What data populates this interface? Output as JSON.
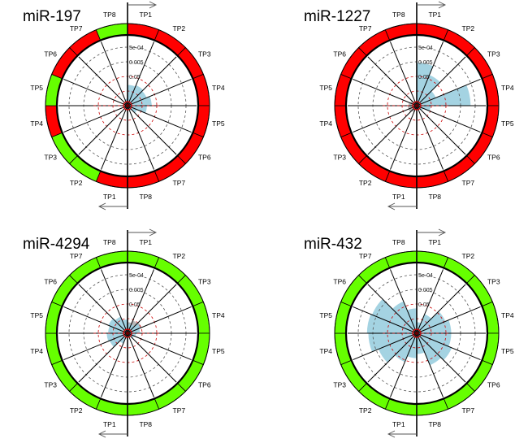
{
  "chart_data": [
    {
      "type": "radial",
      "title": "miR-197",
      "ring_labels_right": [
        "TP1",
        "TP2",
        "TP3",
        "TP4",
        "TP5",
        "TP6",
        "TP7",
        "TP8"
      ],
      "ring_labels_left": [
        "TP1",
        "TP2",
        "TP3",
        "TP4",
        "TP5",
        "TP6",
        "TP7",
        "TP8"
      ],
      "scale_labels": [
        "5e-04",
        "0.005",
        "0.05"
      ],
      "ring_status": [
        "red",
        "red",
        "red",
        "red",
        "red",
        "red",
        "red",
        "red",
        "red",
        "green",
        "green",
        "red",
        "green",
        "red",
        "red",
        "green"
      ],
      "blue_values": [
        0.3,
        0.32,
        0.3,
        0.35,
        0.28,
        0.15,
        0.08,
        0.06,
        0.06,
        0.05,
        0.05,
        0.05,
        0.05,
        0.05,
        0.05,
        0.1
      ],
      "grey_values": [
        0,
        0,
        0,
        0,
        0,
        0,
        0,
        0,
        0,
        0,
        0,
        0,
        0,
        0,
        0,
        0
      ]
    },
    {
      "type": "radial",
      "title": "miR-1227",
      "ring_labels_right": [
        "TP1",
        "TP2",
        "TP3",
        "TP4",
        "TP5",
        "TP6",
        "TP7",
        "TP8"
      ],
      "ring_labels_left": [
        "TP1",
        "TP2",
        "TP3",
        "TP4",
        "TP5",
        "TP6",
        "TP7",
        "TP8"
      ],
      "scale_labels": [
        "5e-04",
        "0.005",
        "0.05"
      ],
      "ring_status": [
        "red",
        "red",
        "red",
        "red",
        "red",
        "red",
        "red",
        "red",
        "red",
        "red",
        "red",
        "red",
        "red",
        "red",
        "red",
        "red"
      ],
      "blue_values": [
        0.62,
        0.48,
        0.3,
        0.78,
        0.2,
        0.1,
        0.06,
        0.05,
        0.05,
        0.05,
        0.05,
        0.05,
        0.05,
        0.05,
        0.05,
        0.05
      ],
      "grey_values": [
        0,
        0,
        0,
        0,
        0,
        0,
        0,
        0,
        0.06,
        0.1,
        0.13,
        0.13,
        0.12,
        0.1,
        0.06,
        0.05
      ]
    },
    {
      "type": "radial",
      "title": "miR-4294",
      "ring_labels_right": [
        "TP1",
        "TP2",
        "TP3",
        "TP4",
        "TP5",
        "TP6",
        "TP7",
        "TP8"
      ],
      "ring_labels_left": [
        "TP1",
        "TP2",
        "TP3",
        "TP4",
        "TP5",
        "TP6",
        "TP7",
        "TP8"
      ],
      "scale_labels": [
        "5e-04",
        "0.005",
        "0.05"
      ],
      "ring_status": [
        "green",
        "green",
        "green",
        "green",
        "green",
        "green",
        "green",
        "green",
        "green",
        "green",
        "green",
        "green",
        "green",
        "green",
        "green",
        "green"
      ],
      "blue_values": [
        0.14,
        0.14,
        0.2,
        0.18,
        0.12,
        0.1,
        0.06,
        0.05,
        0.08,
        0.16,
        0.28,
        0.3,
        0.28,
        0.3,
        0.26,
        0.2
      ],
      "grey_values": [
        0.16,
        0.2,
        0.22,
        0.14,
        0.08,
        0.06,
        0,
        0,
        0,
        0,
        0,
        0,
        0,
        0,
        0,
        0.1
      ]
    },
    {
      "type": "radial",
      "title": "miR-432",
      "ring_labels_right": [
        "TP1",
        "TP2",
        "TP3",
        "TP4",
        "TP5",
        "TP6",
        "TP7",
        "TP8"
      ],
      "ring_labels_left": [
        "TP1",
        "TP2",
        "TP3",
        "TP4",
        "TP5",
        "TP6",
        "TP7",
        "TP8"
      ],
      "scale_labels": [
        "5e-04",
        "0.005",
        "0.05"
      ],
      "ring_status": [
        "green",
        "green",
        "green",
        "green",
        "green",
        "green",
        "green",
        "green",
        "green",
        "green",
        "green",
        "green",
        "green",
        "green",
        "green",
        "green"
      ],
      "blue_values": [
        0.16,
        0.3,
        0.45,
        0.5,
        0.5,
        0.55,
        0.5,
        0.3,
        0.36,
        0.45,
        0.6,
        0.7,
        0.72,
        0.7,
        0.5,
        0.36
      ],
      "grey_values": [
        0,
        0,
        0,
        0,
        0,
        0,
        0,
        0,
        0,
        0,
        0,
        0,
        0,
        0,
        0,
        0
      ]
    }
  ],
  "colors": {
    "red": "#ff0000",
    "green": "#66ff00",
    "blue": "#9ccfe0",
    "grey": "#b8b8b8",
    "dashed_red": "#cc0000"
  },
  "icons": [
    "arrow-right-icon",
    "arrow-left-icon"
  ]
}
